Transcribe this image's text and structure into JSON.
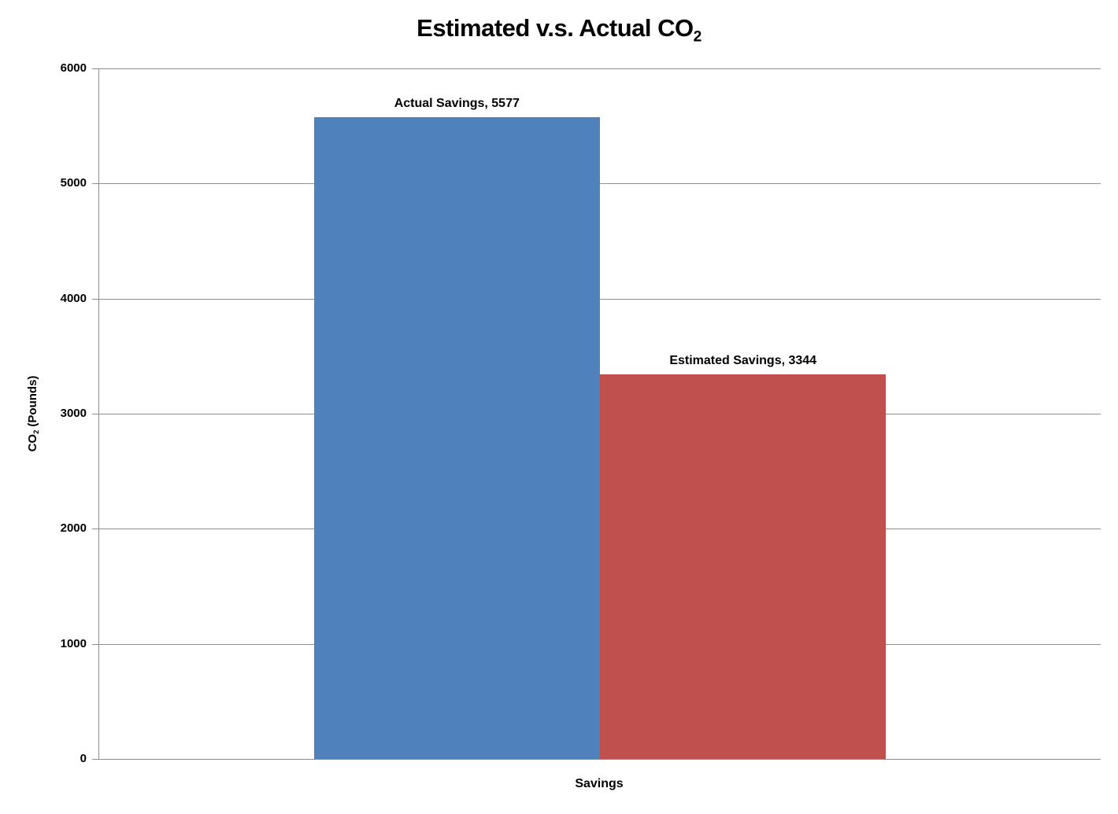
{
  "chart_data": {
    "type": "bar",
    "title": "Estimated v.s. Actual CO2",
    "title_parts": {
      "main": "Estimated v.s. Actual CO",
      "sub": "2"
    },
    "ylabel": "CO2 (Pounds)",
    "ylabel_parts": {
      "pre": "CO",
      "sub": "2",
      "post": " (Pounds)"
    },
    "xlabel": "Savings",
    "categories": [
      "Savings"
    ],
    "series": [
      {
        "name": "Actual Savings",
        "value": 5577,
        "label": "Actual Savings, 5577",
        "color": "#4F81BD"
      },
      {
        "name": "Estimated Savings",
        "value": 3344,
        "label": "Estimated Savings, 3344",
        "color": "#C0504D"
      }
    ],
    "ylim": [
      0,
      6000
    ],
    "y_ticks": [
      0,
      1000,
      2000,
      3000,
      4000,
      5000,
      6000
    ],
    "grid": "horizontal",
    "legend": "none",
    "gap_width_ratio": 1.5,
    "colors": {
      "gridline": "#8e8e8e",
      "axis": "#8e8e8e",
      "text": "#000000",
      "background": "#ffffff"
    }
  }
}
